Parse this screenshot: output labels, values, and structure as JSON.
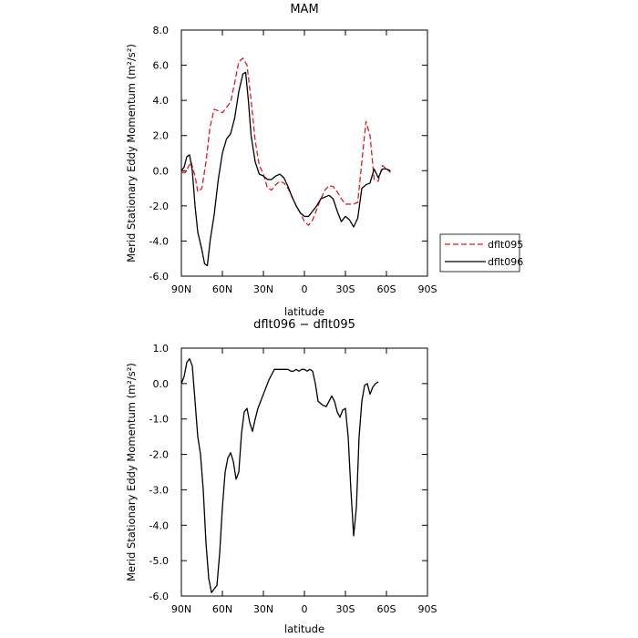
{
  "chart_data": [
    {
      "type": "line",
      "title": "MAM",
      "xlabel": "latitude",
      "ylabel": "Merid Stationary Eddy Momentum (m²/s²)",
      "xlim": [
        90,
        -90
      ],
      "ylim": [
        -6,
        8
      ],
      "xticks": [
        {
          "value": 90,
          "label": "90N"
        },
        {
          "value": 60,
          "label": "60N"
        },
        {
          "value": 30,
          "label": "30N"
        },
        {
          "value": 0,
          "label": "0"
        },
        {
          "value": -30,
          "label": "30S"
        },
        {
          "value": -60,
          "label": "60S"
        },
        {
          "value": -90,
          "label": "90S"
        }
      ],
      "yticks": [
        {
          "value": -6,
          "label": "-6.0"
        },
        {
          "value": -4,
          "label": "-4.0"
        },
        {
          "value": -2,
          "label": "-2.0"
        },
        {
          "value": 0,
          "label": "0.0"
        },
        {
          "value": 2,
          "label": "2.0"
        },
        {
          "value": 4,
          "label": "4.0"
        },
        {
          "value": 6,
          "label": "6.0"
        },
        {
          "value": 8,
          "label": "8.0"
        }
      ],
      "grid": false,
      "legend_placement": "outside-right",
      "series": [
        {
          "name": "dflt095",
          "color": "#e41a1c",
          "dash": "dashed",
          "points": [
            [
              90,
              -0.1
            ],
            [
              87,
              -0.1
            ],
            [
              83,
              0.5
            ],
            [
              80,
              -0.3
            ],
            [
              78,
              -1.2
            ],
            [
              75,
              -1.0
            ],
            [
              72,
              0.5
            ],
            [
              69,
              2.5
            ],
            [
              66,
              3.5
            ],
            [
              63,
              3.4
            ],
            [
              60,
              3.3
            ],
            [
              57,
              3.6
            ],
            [
              54,
              3.9
            ],
            [
              51,
              5.0
            ],
            [
              48,
              6.2
            ],
            [
              45,
              6.4
            ],
            [
              42,
              6.0
            ],
            [
              39,
              4.0
            ],
            [
              36,
              1.7
            ],
            [
              33,
              0.3
            ],
            [
              30,
              -0.2
            ],
            [
              27,
              -1.0
            ],
            [
              24,
              -1.1
            ],
            [
              21,
              -0.8
            ],
            [
              18,
              -0.6
            ],
            [
              15,
              -0.7
            ],
            [
              12,
              -1.0
            ],
            [
              9,
              -1.5
            ],
            [
              6,
              -2.0
            ],
            [
              3,
              -2.4
            ],
            [
              0,
              -2.9
            ],
            [
              -3,
              -3.1
            ],
            [
              -6,
              -2.8
            ],
            [
              -9,
              -2.2
            ],
            [
              -12,
              -1.6
            ],
            [
              -15,
              -1.1
            ],
            [
              -18,
              -0.85
            ],
            [
              -21,
              -0.9
            ],
            [
              -24,
              -1.2
            ],
            [
              -27,
              -1.6
            ],
            [
              -30,
              -1.9
            ],
            [
              -33,
              -1.9
            ],
            [
              -36,
              -1.9
            ],
            [
              -39,
              -1.8
            ],
            [
              -42,
              0.5
            ],
            [
              -45,
              2.8
            ],
            [
              -48,
              2.0
            ],
            [
              -51,
              -0.5
            ],
            [
              -54,
              -0.6
            ],
            [
              -57,
              0.3
            ],
            [
              -60,
              0.1
            ],
            [
              -63,
              -0.1
            ]
          ]
        },
        {
          "name": "dflt096",
          "color": "#000000",
          "dash": "solid",
          "points": [
            [
              90,
              0.0
            ],
            [
              88,
              0.2
            ],
            [
              86,
              0.8
            ],
            [
              84,
              0.9
            ],
            [
              82,
              0.0
            ],
            [
              80,
              -2.0
            ],
            [
              78,
              -3.5
            ],
            [
              75,
              -4.5
            ],
            [
              73,
              -5.3
            ],
            [
              71,
              -5.4
            ],
            [
              69,
              -4.0
            ],
            [
              66,
              -2.5
            ],
            [
              63,
              -0.5
            ],
            [
              60,
              1.0
            ],
            [
              57,
              1.8
            ],
            [
              54,
              2.1
            ],
            [
              51,
              3.0
            ],
            [
              48,
              4.5
            ],
            [
              45,
              5.5
            ],
            [
              43,
              5.6
            ],
            [
              41,
              4.0
            ],
            [
              39,
              2.0
            ],
            [
              36,
              0.5
            ],
            [
              33,
              -0.2
            ],
            [
              30,
              -0.3
            ],
            [
              27,
              -0.5
            ],
            [
              24,
              -0.5
            ],
            [
              21,
              -0.3
            ],
            [
              18,
              -0.2
            ],
            [
              15,
              -0.4
            ],
            [
              12,
              -0.9
            ],
            [
              9,
              -1.5
            ],
            [
              6,
              -2.0
            ],
            [
              3,
              -2.4
            ],
            [
              0,
              -2.6
            ],
            [
              -3,
              -2.6
            ],
            [
              -6,
              -2.3
            ],
            [
              -9,
              -2.0
            ],
            [
              -12,
              -1.6
            ],
            [
              -15,
              -1.5
            ],
            [
              -18,
              -1.4
            ],
            [
              -21,
              -1.6
            ],
            [
              -24,
              -2.3
            ],
            [
              -27,
              -2.9
            ],
            [
              -30,
              -2.6
            ],
            [
              -33,
              -2.8
            ],
            [
              -36,
              -3.2
            ],
            [
              -39,
              -2.7
            ],
            [
              -42,
              -1.0
            ],
            [
              -45,
              -0.8
            ],
            [
              -48,
              -0.7
            ],
            [
              -51,
              0.1
            ],
            [
              -54,
              -0.4
            ],
            [
              -57,
              0.1
            ],
            [
              -60,
              0.1
            ],
            [
              -63,
              0.0
            ]
          ]
        }
      ]
    },
    {
      "type": "line",
      "title": "dflt096 − dflt095",
      "xlabel": "latitude",
      "ylabel": "Merid Stationary Eddy Momentum (m²/s²)",
      "xlim": [
        90,
        -90
      ],
      "ylim": [
        -6,
        1
      ],
      "xticks": [
        {
          "value": 90,
          "label": "90N"
        },
        {
          "value": 60,
          "label": "60N"
        },
        {
          "value": 30,
          "label": "30N"
        },
        {
          "value": 0,
          "label": "0"
        },
        {
          "value": -30,
          "label": "30S"
        },
        {
          "value": -60,
          "label": "60S"
        },
        {
          "value": -90,
          "label": "90S"
        }
      ],
      "yticks": [
        {
          "value": -6,
          "label": "-6.0"
        },
        {
          "value": -5,
          "label": "-5.0"
        },
        {
          "value": -4,
          "label": "-4.0"
        },
        {
          "value": -3,
          "label": "-3.0"
        },
        {
          "value": -2,
          "label": "-2.0"
        },
        {
          "value": -1,
          "label": "-1.0"
        },
        {
          "value": 0,
          "label": "0.0"
        },
        {
          "value": 1,
          "label": "1.0"
        }
      ],
      "grid": false,
      "series": [
        {
          "color": "#000000",
          "dash": "solid",
          "points": [
            [
              90,
              0.0
            ],
            [
              88,
              0.2
            ],
            [
              86,
              0.6
            ],
            [
              84,
              0.7
            ],
            [
              82,
              0.5
            ],
            [
              80,
              -0.5
            ],
            [
              78,
              -1.5
            ],
            [
              76,
              -2.0
            ],
            [
              74,
              -3.0
            ],
            [
              72,
              -4.5
            ],
            [
              70,
              -5.5
            ],
            [
              68,
              -5.9
            ],
            [
              66,
              -5.8
            ],
            [
              64,
              -5.7
            ],
            [
              62,
              -4.8
            ],
            [
              60,
              -3.5
            ],
            [
              58,
              -2.5
            ],
            [
              56,
              -2.1
            ],
            [
              54,
              -1.95
            ],
            [
              52,
              -2.2
            ],
            [
              50,
              -2.7
            ],
            [
              48,
              -2.5
            ],
            [
              46,
              -1.4
            ],
            [
              44,
              -0.8
            ],
            [
              42,
              -0.7
            ],
            [
              40,
              -1.1
            ],
            [
              38,
              -1.35
            ],
            [
              36,
              -1.0
            ],
            [
              34,
              -0.7
            ],
            [
              32,
              -0.5
            ],
            [
              30,
              -0.3
            ],
            [
              28,
              -0.1
            ],
            [
              26,
              0.1
            ],
            [
              24,
              0.25
            ],
            [
              22,
              0.4
            ],
            [
              20,
              0.4
            ],
            [
              16,
              0.4
            ],
            [
              12,
              0.4
            ],
            [
              10,
              0.35
            ],
            [
              8,
              0.35
            ],
            [
              6,
              0.4
            ],
            [
              4,
              0.35
            ],
            [
              2,
              0.4
            ],
            [
              0,
              0.4
            ],
            [
              -2,
              0.35
            ],
            [
              -4,
              0.4
            ],
            [
              -6,
              0.35
            ],
            [
              -8,
              0.0
            ],
            [
              -10,
              -0.5
            ],
            [
              -13,
              -0.6
            ],
            [
              -16,
              -0.65
            ],
            [
              -18,
              -0.5
            ],
            [
              -20,
              -0.35
            ],
            [
              -22,
              -0.5
            ],
            [
              -24,
              -0.8
            ],
            [
              -26,
              -0.95
            ],
            [
              -28,
              -0.75
            ],
            [
              -30,
              -0.7
            ],
            [
              -32,
              -1.5
            ],
            [
              -34,
              -3.0
            ],
            [
              -36,
              -4.3
            ],
            [
              -38,
              -3.5
            ],
            [
              -40,
              -1.5
            ],
            [
              -42,
              -0.5
            ],
            [
              -44,
              -0.05
            ],
            [
              -46,
              0.0
            ],
            [
              -48,
              -0.3
            ],
            [
              -50,
              -0.1
            ],
            [
              -52,
              0.0
            ],
            [
              -54,
              0.05
            ]
          ]
        }
      ]
    }
  ]
}
